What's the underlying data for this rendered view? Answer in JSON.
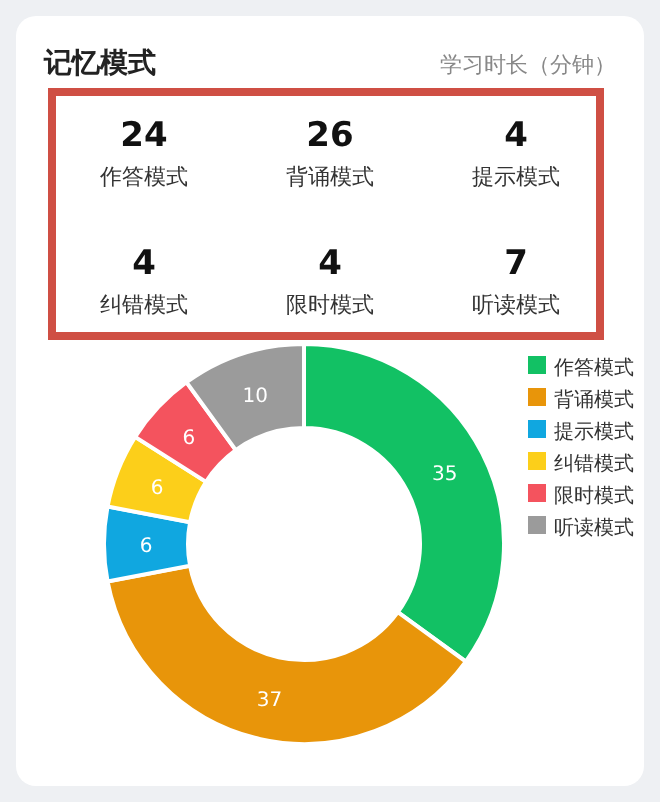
{
  "chart_data": [
    {
      "type": "other",
      "title": "记忆模式",
      "subtitle": "学习时长（分钟）",
      "categories": [
        "作答模式",
        "背诵模式",
        "提示模式",
        "纠错模式",
        "限时模式",
        "听读模式"
      ],
      "values": [
        24,
        26,
        4,
        4,
        4,
        7
      ],
      "color": "#cf4f44",
      "data_labels": true
    },
    {
      "type": "donut",
      "categories": [
        "作答模式",
        "背诵模式",
        "提示模式",
        "纠错模式",
        "限时模式",
        "听读模式"
      ],
      "values": [
        35,
        37,
        6,
        6,
        6,
        10
      ],
      "colors": [
        "#12c164",
        "#e8950a",
        "#10a7e0",
        "#fccf1a",
        "#f4535e",
        "#9b9b9b"
      ],
      "data_labels": true,
      "legend": "right"
    }
  ]
}
